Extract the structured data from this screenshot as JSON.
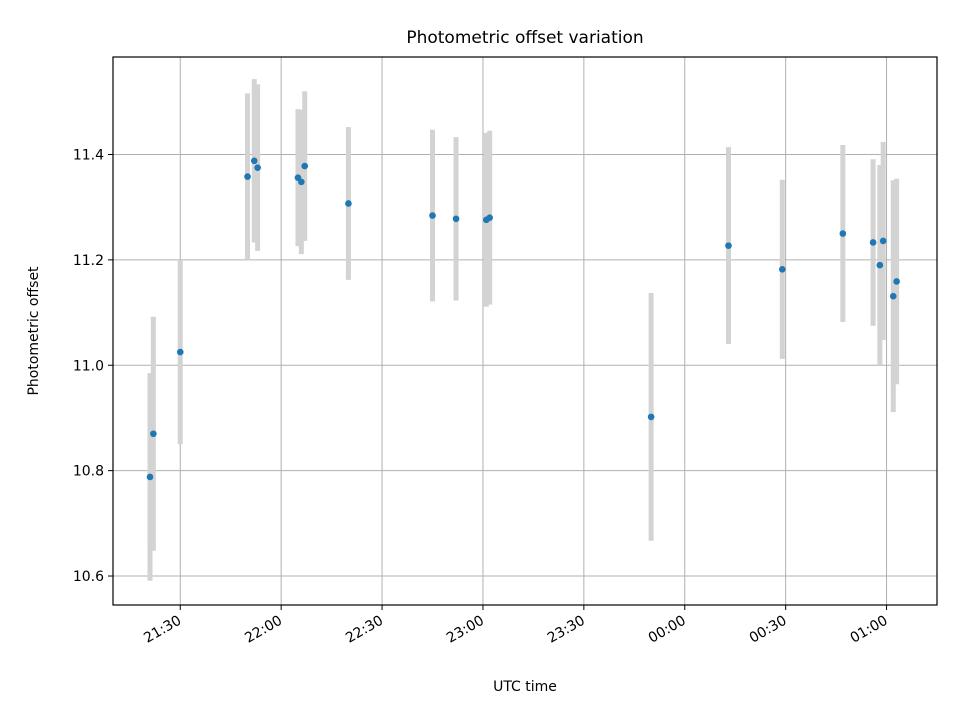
{
  "chart_data": {
    "type": "scatter",
    "title": "Photometric offset variation",
    "xlabel": "UTC time",
    "ylabel": "Photometric offset",
    "x_unit": "UTC time (hh:mm)",
    "x_tick_labels": [
      "21:30",
      "22:00",
      "22:30",
      "23:00",
      "23:30",
      "00:00",
      "00:30",
      "01:00"
    ],
    "x_ticks": [
      "21:30",
      "22:00",
      "22:30",
      "23:00",
      "23:30",
      "24:00",
      "24:30",
      "25:00"
    ],
    "xlim": [
      "21:10",
      "25:15"
    ],
    "ylim": [
      10.545,
      11.585
    ],
    "y_ticks": [
      10.6,
      10.8,
      11.0,
      11.2,
      11.4
    ],
    "y_tick_labels": [
      "10.6",
      "10.8",
      "11.0",
      "11.2",
      "11.4"
    ],
    "grid": true,
    "colors": {
      "point": "#1f77b4",
      "errorbar": "#d3d3d3",
      "grid": "#b0b0b0"
    },
    "points": [
      {
        "t": "21:21",
        "y": 10.788,
        "err": 0.197
      },
      {
        "t": "21:22",
        "y": 10.87,
        "err": 0.222
      },
      {
        "t": "21:30",
        "y": 11.025,
        "err": 0.175
      },
      {
        "t": "21:50",
        "y": 11.358,
        "err": 0.158
      },
      {
        "t": "21:52",
        "y": 11.388,
        "err": 0.155
      },
      {
        "t": "21:53",
        "y": 11.375,
        "err": 0.158
      },
      {
        "t": "22:05",
        "y": 11.356,
        "err": 0.13
      },
      {
        "t": "22:06",
        "y": 11.348,
        "err": 0.137
      },
      {
        "t": "22:07",
        "y": 11.378,
        "err": 0.142
      },
      {
        "t": "22:20",
        "y": 11.307,
        "err": 0.145
      },
      {
        "t": "22:45",
        "y": 11.284,
        "err": 0.163
      },
      {
        "t": "22:52",
        "y": 11.278,
        "err": 0.155
      },
      {
        "t": "23:01",
        "y": 11.276,
        "err": 0.165
      },
      {
        "t": "23:02",
        "y": 11.28,
        "err": 0.165
      },
      {
        "t": "23:50",
        "y": 10.902,
        "err": 0.235
      },
      {
        "t": "24:13",
        "y": 11.227,
        "err": 0.187
      },
      {
        "t": "24:29",
        "y": 11.182,
        "err": 0.17
      },
      {
        "t": "24:47",
        "y": 11.25,
        "err": 0.168
      },
      {
        "t": "24:56",
        "y": 11.233,
        "err": 0.158
      },
      {
        "t": "24:58",
        "y": 11.19,
        "err": 0.19
      },
      {
        "t": "24:59",
        "y": 11.236,
        "err": 0.188
      },
      {
        "t": "25:02",
        "y": 11.131,
        "err": 0.22
      },
      {
        "t": "25:03",
        "y": 11.159,
        "err": 0.195
      }
    ]
  }
}
